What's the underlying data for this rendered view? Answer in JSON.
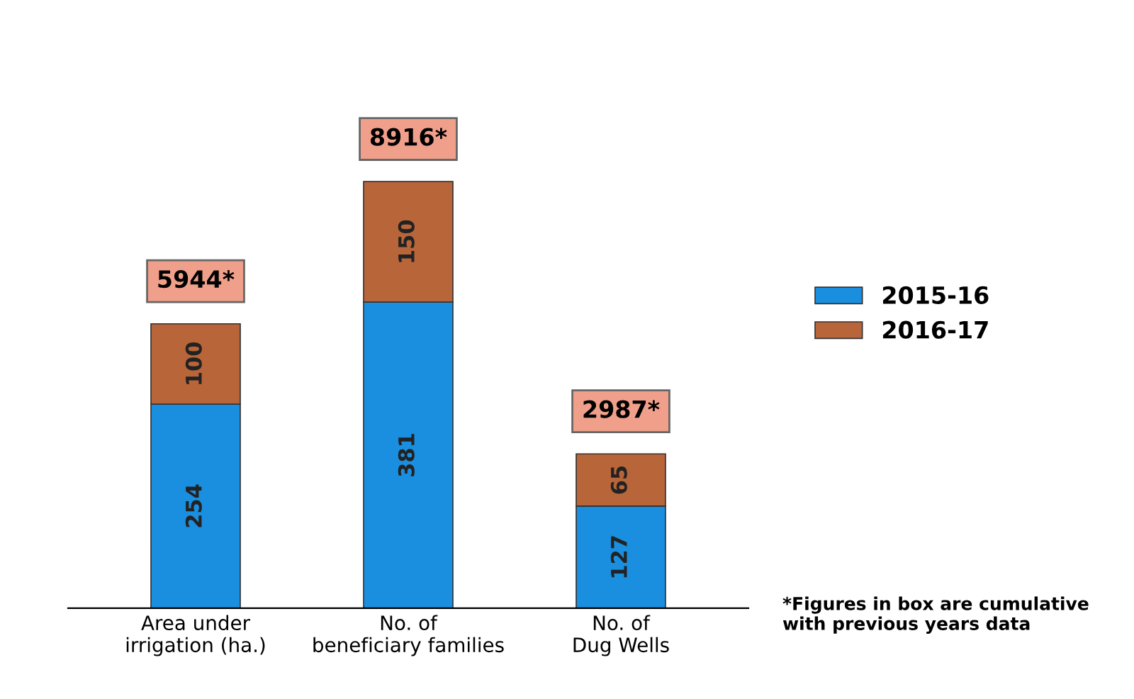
{
  "chart_data": {
    "type": "bar",
    "stacked": true,
    "data_labels": true,
    "legend": "right",
    "grid": false,
    "categories": [
      "Area under\nirrigation (ha.)",
      "No. of\nbeneficiary families",
      "No. of\nDug Wells"
    ],
    "series": [
      {
        "name": "2015-16",
        "color": "#1a8fe0",
        "values": [
          254,
          381,
          127
        ]
      },
      {
        "name": "2016-17",
        "color": "#b8653a",
        "values": [
          100,
          150,
          65
        ]
      }
    ],
    "annotations": [
      "5944*",
      "8916*",
      "2987*",
      "*Figures in box are cumulative\nwith previous years data"
    ]
  }
}
